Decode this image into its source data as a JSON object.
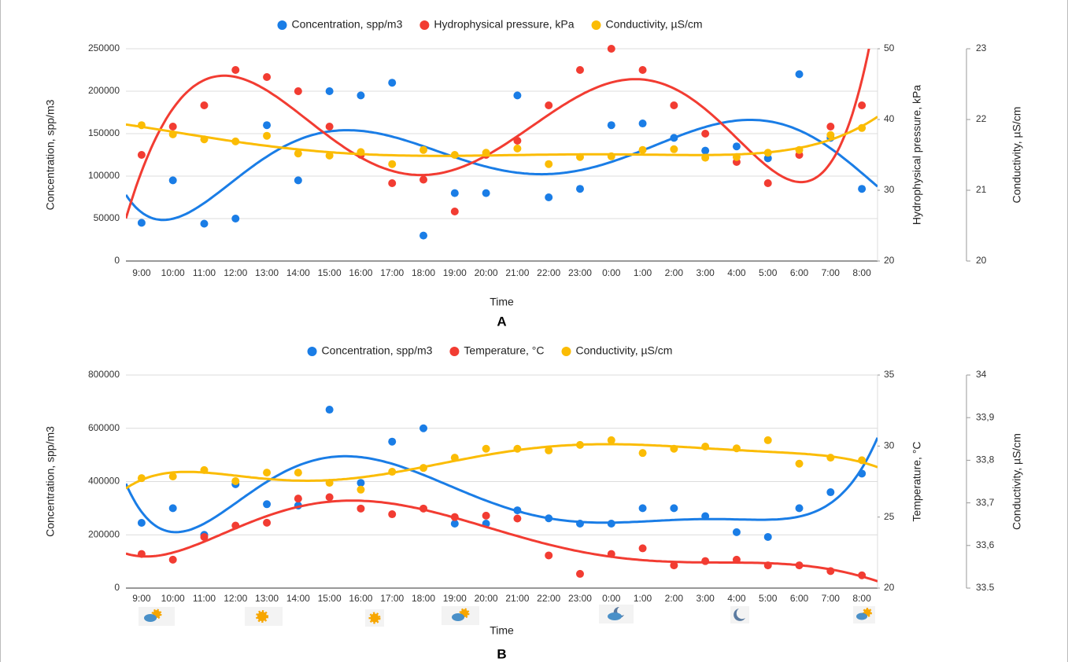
{
  "chart_data": [
    {
      "type": "scatter",
      "title": "A",
      "x_label": "Time",
      "y_label": "Concentration, spp/m3",
      "y2_label": "Hydrophysical pressure, kPa",
      "y3_label": "Conductivity, µS/cm",
      "categories": [
        "9:00",
        "10:00",
        "11:00",
        "12:00",
        "13:00",
        "14:00",
        "15:00",
        "16:00",
        "17:00",
        "18:00",
        "19:00",
        "20:00",
        "21:00",
        "22:00",
        "23:00",
        "0:00",
        "1:00",
        "2:00",
        "3:00",
        "4:00",
        "5:00",
        "6:00",
        "7:00",
        "8:00"
      ],
      "ylim": [
        0,
        250000
      ],
      "yticks": [
        0,
        50000,
        100000,
        150000,
        200000,
        250000
      ],
      "y2lim": [
        20,
        50
      ],
      "y2ticks": [
        20,
        30,
        40,
        50
      ],
      "y3lim": [
        20,
        23
      ],
      "y3ticks": [
        20,
        21,
        22,
        23
      ],
      "grid": true,
      "trendline": "polynomial",
      "legend": "top",
      "series": [
        {
          "name": "Concentration, spp/m3",
          "color": "#1a7de6",
          "axis": "y",
          "values": [
            45000,
            95000,
            44000,
            50000,
            160000,
            95000,
            200000,
            195000,
            210000,
            30000,
            80000,
            80000,
            195000,
            75000,
            85000,
            160000,
            162000,
            145000,
            130000,
            135000,
            121000,
            220000,
            145000,
            85000
          ]
        },
        {
          "name": "Hydrophysical pressure, kPa",
          "color": "#f23c32",
          "axis": "y2",
          "values": [
            35,
            39,
            42,
            47,
            46,
            44,
            39,
            35,
            31,
            31.5,
            27,
            35,
            37,
            42,
            47,
            50,
            47,
            42,
            38,
            34,
            31,
            35,
            39,
            42
          ]
        },
        {
          "name": "Conductivity, µS/cm",
          "color": "#fbbc04",
          "axis": "y3",
          "values": [
            21.92,
            21.79,
            21.72,
            21.69,
            21.77,
            21.52,
            21.49,
            21.54,
            21.37,
            21.57,
            21.5,
            21.53,
            21.59,
            21.37,
            21.47,
            21.48,
            21.57,
            21.58,
            21.46,
            21.47,
            21.53,
            21.57,
            21.78,
            21.88
          ]
        }
      ]
    },
    {
      "type": "scatter",
      "title": "B",
      "x_label": "Time",
      "y_label": "Concentration, spp/m3",
      "y2_label": "Temperature, °C",
      "y3_label": "Conductivity, µS/cm",
      "categories": [
        "9:00",
        "10:00",
        "11:00",
        "12:00",
        "13:00",
        "14:00",
        "15:00",
        "16:00",
        "17:00",
        "18:00",
        "19:00",
        "20:00",
        "21:00",
        "22:00",
        "23:00",
        "0:00",
        "1:00",
        "2:00",
        "3:00",
        "4:00",
        "5:00",
        "6:00",
        "7:00",
        "8:00"
      ],
      "ylim": [
        0,
        800000
      ],
      "yticks": [
        0,
        200000,
        400000,
        600000,
        800000
      ],
      "y2lim": [
        20,
        35
      ],
      "y2ticks": [
        20,
        25,
        30,
        35
      ],
      "y3lim": [
        33.5,
        34
      ],
      "y3ticks": [
        33.5,
        {
          "value": 33.6,
          "label": "33,6"
        },
        {
          "value": 33.7,
          "label": "33,7"
        },
        {
          "value": 33.8,
          "label": "33,8"
        },
        {
          "value": 33.9,
          "label": "33,9"
        },
        34
      ],
      "grid": true,
      "trendline": "polynomial",
      "legend": "top",
      "series": [
        {
          "name": "Concentration, spp/m3",
          "color": "#1a7de6",
          "axis": "y",
          "values": [
            245000,
            300000,
            200000,
            390000,
            315000,
            310000,
            670000,
            395000,
            550000,
            600000,
            242000,
            242000,
            292000,
            262000,
            242000,
            242000,
            300000,
            300000,
            270000,
            210000,
            192000,
            300000,
            360000,
            430000
          ]
        },
        {
          "name": "Temperature, °C",
          "color": "#f23c32",
          "axis": "y2",
          "values": [
            22.4,
            22.0,
            23.6,
            24.4,
            24.6,
            26.3,
            26.4,
            25.6,
            25.2,
            25.6,
            25.0,
            25.1,
            24.9,
            22.3,
            21.0,
            22.4,
            22.8,
            21.6,
            21.9,
            22.0,
            21.6,
            21.6,
            21.2,
            20.9
          ]
        },
        {
          "name": "Conductivity, µS/cm",
          "color": "#fbbc04",
          "axis": "y3",
          "values": [
            33.758,
            33.762,
            33.777,
            33.751,
            33.771,
            33.771,
            33.747,
            33.731,
            33.773,
            33.782,
            33.806,
            33.827,
            33.827,
            33.823,
            33.836,
            33.847,
            33.817,
            33.827,
            33.832,
            33.828,
            33.847,
            33.792,
            33.806,
            33.8
          ]
        }
      ]
    }
  ]
}
